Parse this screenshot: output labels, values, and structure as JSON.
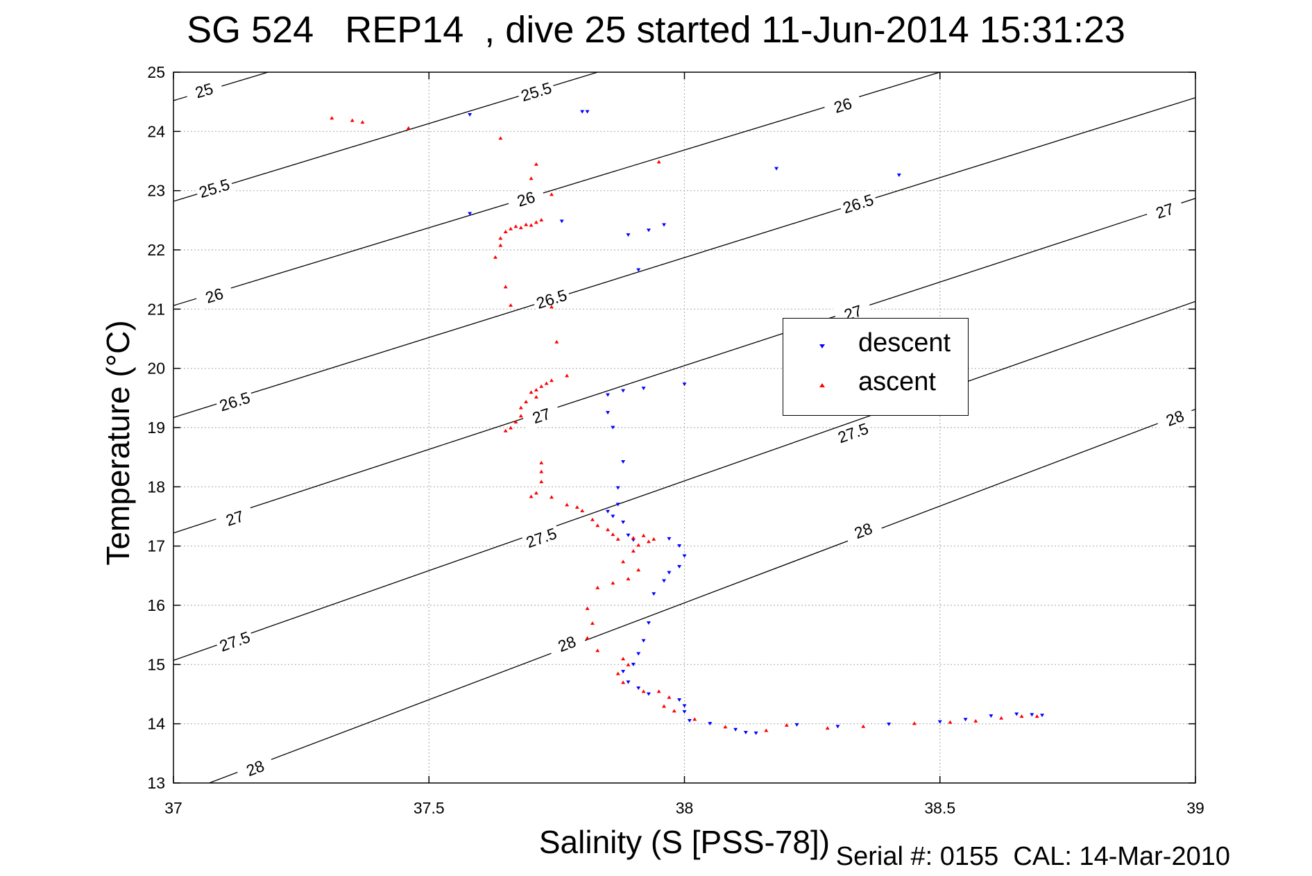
{
  "chart_data": {
    "type": "scatter",
    "title": "SG 524   REP14  , dive 25 started 11-Jun-2014 15:31:23",
    "xlabel": "Salinity (S [PSS-78])",
    "ylabel": "Temperature (°C)",
    "footer": "Serial #: 0155  CAL: 14-Mar-2010",
    "xlim": [
      37,
      39
    ],
    "ylim": [
      13,
      25
    ],
    "xticks": [
      37,
      37.5,
      38,
      38.5,
      39
    ],
    "xtick_labels": [
      "37",
      "37.5",
      "38",
      "38.5",
      "39"
    ],
    "yticks": [
      13,
      14,
      15,
      16,
      17,
      18,
      19,
      20,
      21,
      22,
      23,
      24,
      25
    ],
    "ytick_labels": [
      "13",
      "14",
      "15",
      "16",
      "17",
      "18",
      "19",
      "20",
      "21",
      "22",
      "23",
      "24",
      "25"
    ],
    "grid": true,
    "legend_position": "upper-right",
    "colors": {
      "descent": "#0000ff",
      "ascent": "#ff0000",
      "contour": "#000000",
      "grid": "#b0b0b0"
    },
    "density_contours": [
      {
        "label": "25",
        "points": [
          [
            37,
            24.52
          ],
          [
            37.185,
            25.0
          ]
        ],
        "label_at": [
          [
            37.06,
            24.69
          ]
        ]
      },
      {
        "label": "25.5",
        "points": [
          [
            37,
            22.82
          ],
          [
            37.83,
            25.0
          ]
        ],
        "label_at": [
          [
            37.08,
            23.04
          ],
          [
            37.71,
            24.67
          ]
        ]
      },
      {
        "label": "26",
        "points": [
          [
            37,
            21.06
          ],
          [
            38.5,
            25.0
          ]
        ],
        "label_at": [
          [
            37.08,
            21.23
          ],
          [
            37.69,
            22.86
          ],
          [
            38.31,
            24.44
          ]
        ]
      },
      {
        "label": "26.5",
        "points": [
          [
            37,
            19.17
          ],
          [
            39,
            24.57
          ]
        ],
        "label_at": [
          [
            37.12,
            19.44
          ],
          [
            37.74,
            21.17
          ],
          [
            38.34,
            22.78
          ]
        ]
      },
      {
        "label": "27",
        "points": [
          [
            37,
            17.22
          ],
          [
            39,
            22.87
          ]
        ],
        "label_at": [
          [
            37.12,
            17.47
          ],
          [
            37.72,
            19.2
          ],
          [
            38.33,
            20.94
          ],
          [
            38.94,
            22.66
          ]
        ]
      },
      {
        "label": "27.5",
        "points": [
          [
            37,
            15.07
          ],
          [
            39,
            21.13
          ]
        ],
        "label_at": [
          [
            37.12,
            15.39
          ],
          [
            37.72,
            17.14
          ],
          [
            38.33,
            18.91
          ]
        ]
      },
      {
        "label": "28",
        "points": [
          [
            37.07,
            13.0
          ],
          [
            39,
            19.31
          ]
        ],
        "label_at": [
          [
            37.16,
            13.25
          ],
          [
            37.77,
            15.35
          ],
          [
            38.35,
            17.26
          ],
          [
            38.96,
            19.16
          ]
        ]
      }
    ],
    "series": [
      {
        "name": "descent",
        "marker": "triangle-down",
        "points": [
          [
            37.58,
            24.28
          ],
          [
            37.8,
            24.33
          ],
          [
            37.81,
            24.33
          ],
          [
            38.18,
            23.37
          ],
          [
            38.42,
            23.26
          ],
          [
            37.58,
            22.61
          ],
          [
            37.76,
            22.48
          ],
          [
            37.89,
            22.25
          ],
          [
            37.93,
            22.33
          ],
          [
            37.96,
            22.42
          ],
          [
            37.91,
            21.66
          ],
          [
            37.85,
            19.55
          ],
          [
            37.88,
            19.62
          ],
          [
            37.92,
            19.66
          ],
          [
            38.0,
            19.73
          ],
          [
            37.85,
            19.25
          ],
          [
            37.86,
            19.0
          ],
          [
            37.88,
            18.42
          ],
          [
            37.87,
            17.98
          ],
          [
            37.87,
            17.7
          ],
          [
            37.85,
            17.58
          ],
          [
            37.86,
            17.5
          ],
          [
            37.88,
            17.4
          ],
          [
            37.89,
            17.18
          ],
          [
            37.9,
            17.1
          ],
          [
            37.97,
            17.12
          ],
          [
            37.99,
            17.0
          ],
          [
            38.0,
            16.83
          ],
          [
            37.99,
            16.65
          ],
          [
            37.97,
            16.55
          ],
          [
            37.96,
            16.41
          ],
          [
            37.94,
            16.19
          ],
          [
            37.93,
            15.7
          ],
          [
            37.92,
            15.4
          ],
          [
            37.91,
            15.18
          ],
          [
            37.9,
            15.0
          ],
          [
            37.88,
            14.88
          ],
          [
            37.89,
            14.7
          ],
          [
            37.91,
            14.6
          ],
          [
            37.93,
            14.5
          ],
          [
            37.99,
            14.4
          ],
          [
            38.0,
            14.3
          ],
          [
            38.0,
            14.2
          ],
          [
            38.01,
            14.05
          ],
          [
            38.05,
            14.0
          ],
          [
            38.1,
            13.9
          ],
          [
            38.12,
            13.85
          ],
          [
            38.14,
            13.84
          ],
          [
            38.22,
            13.98
          ],
          [
            38.3,
            13.95
          ],
          [
            38.4,
            13.99
          ],
          [
            38.5,
            14.03
          ],
          [
            38.55,
            14.07
          ],
          [
            38.6,
            14.13
          ],
          [
            38.65,
            14.16
          ],
          [
            38.68,
            14.15
          ],
          [
            38.7,
            14.14
          ]
        ]
      },
      {
        "name": "ascent",
        "marker": "triangle-up",
        "points": [
          [
            37.31,
            24.23
          ],
          [
            37.35,
            24.19
          ],
          [
            37.37,
            24.16
          ],
          [
            37.46,
            24.06
          ],
          [
            37.64,
            23.89
          ],
          [
            37.71,
            23.45
          ],
          [
            37.7,
            23.21
          ],
          [
            37.95,
            23.49
          ],
          [
            37.74,
            22.94
          ],
          [
            37.71,
            22.47
          ],
          [
            37.72,
            22.51
          ],
          [
            37.7,
            22.42
          ],
          [
            37.69,
            22.43
          ],
          [
            37.68,
            22.38
          ],
          [
            37.67,
            22.4
          ],
          [
            37.66,
            22.36
          ],
          [
            37.65,
            22.31
          ],
          [
            37.64,
            22.2
          ],
          [
            37.64,
            22.08
          ],
          [
            37.63,
            21.88
          ],
          [
            37.65,
            21.38
          ],
          [
            37.66,
            21.07
          ],
          [
            37.74,
            21.04
          ],
          [
            37.75,
            20.45
          ],
          [
            37.77,
            19.88
          ],
          [
            37.74,
            19.8
          ],
          [
            37.73,
            19.75
          ],
          [
            37.72,
            19.7
          ],
          [
            37.71,
            19.64
          ],
          [
            37.7,
            19.6
          ],
          [
            37.71,
            19.52
          ],
          [
            37.69,
            19.44
          ],
          [
            37.68,
            19.34
          ],
          [
            37.68,
            19.2
          ],
          [
            37.67,
            19.1
          ],
          [
            37.66,
            19.0
          ],
          [
            37.65,
            18.95
          ],
          [
            37.72,
            18.41
          ],
          [
            37.72,
            18.26
          ],
          [
            37.72,
            18.09
          ],
          [
            37.71,
            17.9
          ],
          [
            37.7,
            17.84
          ],
          [
            37.74,
            17.83
          ],
          [
            37.77,
            17.7
          ],
          [
            37.79,
            17.66
          ],
          [
            37.8,
            17.6
          ],
          [
            37.82,
            17.45
          ],
          [
            37.83,
            17.35
          ],
          [
            37.85,
            17.28
          ],
          [
            37.86,
            17.2
          ],
          [
            37.87,
            17.12
          ],
          [
            37.9,
            17.14
          ],
          [
            37.92,
            17.18
          ],
          [
            37.94,
            17.12
          ],
          [
            37.93,
            17.08
          ],
          [
            37.91,
            17.02
          ],
          [
            37.9,
            16.92
          ],
          [
            37.88,
            16.74
          ],
          [
            37.91,
            16.6
          ],
          [
            37.89,
            16.45
          ],
          [
            37.86,
            16.38
          ],
          [
            37.83,
            16.3
          ],
          [
            37.81,
            15.95
          ],
          [
            37.82,
            15.7
          ],
          [
            37.81,
            15.45
          ],
          [
            37.83,
            15.24
          ],
          [
            37.88,
            15.1
          ],
          [
            37.89,
            15.0
          ],
          [
            37.87,
            14.85
          ],
          [
            37.88,
            14.7
          ],
          [
            37.92,
            14.55
          ],
          [
            37.95,
            14.55
          ],
          [
            37.97,
            14.45
          ],
          [
            37.96,
            14.3
          ],
          [
            37.98,
            14.22
          ],
          [
            38.02,
            14.08
          ],
          [
            38.08,
            13.95
          ],
          [
            38.16,
            13.89
          ],
          [
            38.2,
            13.98
          ],
          [
            38.28,
            13.93
          ],
          [
            38.35,
            13.96
          ],
          [
            38.45,
            14.01
          ],
          [
            38.52,
            14.03
          ],
          [
            38.57,
            14.05
          ],
          [
            38.62,
            14.1
          ],
          [
            38.66,
            14.13
          ],
          [
            38.69,
            14.13
          ]
        ]
      }
    ]
  }
}
